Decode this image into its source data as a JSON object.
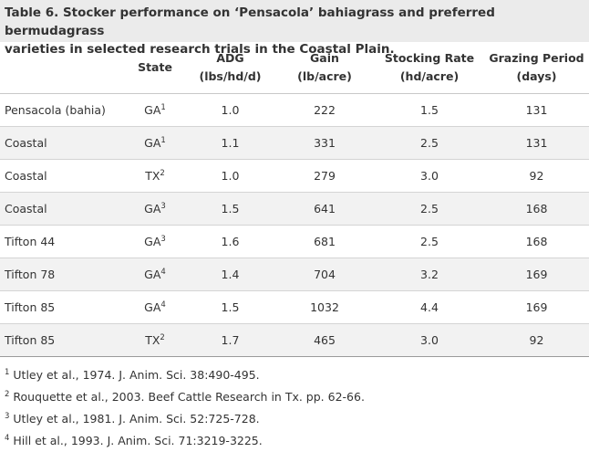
{
  "caption": {
    "line1": "Table 6. Stocker performance on ‘Pensacola’ bahiagrass and preferred bermudagrass",
    "line2": "varieties in selected research trials in the Coastal Plain."
  },
  "header": {
    "variety": "",
    "state": "State",
    "adg_line1": "ADG",
    "adg_line2": "(lbs/hd/d)",
    "gain_line1": "Gain",
    "gain_line2": "(lb/acre)",
    "stocking_line1": "Stocking Rate",
    "stocking_line2": "(hd/acre)",
    "grazing_line1": "Grazing Period",
    "grazing_line2": "(days)"
  },
  "rows": [
    {
      "variety": "Pensacola (bahia)",
      "state": "GA",
      "ref": "1",
      "adg": "1.0",
      "gain": "222",
      "stocking": "1.5",
      "grazing": "131"
    },
    {
      "variety": "Coastal",
      "state": "GA",
      "ref": "1",
      "adg": "1.1",
      "gain": "331",
      "stocking": "2.5",
      "grazing": "131"
    },
    {
      "variety": "Coastal",
      "state": "TX",
      "ref": "2",
      "adg": "1.0",
      "gain": "279",
      "stocking": "3.0",
      "grazing": "92"
    },
    {
      "variety": "Coastal",
      "state": "GA",
      "ref": "3",
      "adg": "1.5",
      "gain": "641",
      "stocking": "2.5",
      "grazing": "168"
    },
    {
      "variety": "Tifton 44",
      "state": "GA",
      "ref": "3",
      "adg": "1.6",
      "gain": "681",
      "stocking": "2.5",
      "grazing": "168"
    },
    {
      "variety": "Tifton 78",
      "state": "GA",
      "ref": "4",
      "adg": "1.4",
      "gain": "704",
      "stocking": "3.2",
      "grazing": "169"
    },
    {
      "variety": "Tifton 85",
      "state": "GA",
      "ref": "4",
      "adg": "1.5",
      "gain": "1032",
      "stocking": "4.4",
      "grazing": "169"
    },
    {
      "variety": "Tifton 85",
      "state": "TX",
      "ref": "2",
      "adg": "1.7",
      "gain": "465",
      "stocking": "3.0",
      "grazing": "92"
    }
  ],
  "footnotes": [
    {
      "num": "1",
      "text": "Utley et al., 1974. J. Anim. Sci. 38:490-495."
    },
    {
      "num": "2",
      "text": "Rouquette et al., 2003. Beef Cattle Research in Tx. pp. 62-66."
    },
    {
      "num": "3",
      "text": "Utley et al., 1981. J. Anim. Sci. 52:725-728."
    },
    {
      "num": "4",
      "text": "Hill et al., 1993. J. Anim. Sci. 71:3219-3225."
    }
  ]
}
